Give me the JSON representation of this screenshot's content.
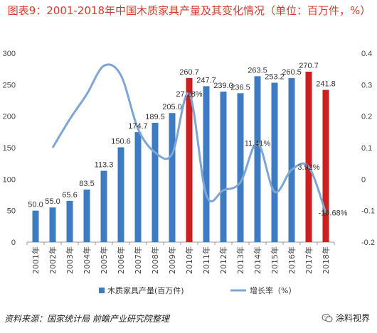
{
  "title": "图表9：2001-2018年中国木质家具产量及其变化情况（单位：百万件，%）",
  "source": "资料来源：国家统计局 前瞻产业研究院整理",
  "brand": "涂料视界",
  "chart_data": {
    "type": "bar",
    "categories": [
      "2001年",
      "2002年",
      "2003年",
      "2004年",
      "2005年",
      "2006年",
      "2007年",
      "2008年",
      "2009年",
      "2010年",
      "2011年",
      "2012年",
      "2013年",
      "2014年",
      "2015年",
      "2016年",
      "2017年",
      "2018年"
    ],
    "series": [
      {
        "name": "木质家具产量(百万件)",
        "type": "bar",
        "axis": "left",
        "values": [
          50.0,
          55.0,
          65.6,
          83.5,
          113.3,
          150.6,
          174.7,
          189.5,
          205.0,
          260.7,
          247.7,
          239.0,
          236.5,
          263.5,
          253.2,
          260.5,
          270.7,
          241.8
        ],
        "labels": [
          "50.0",
          "55.0",
          "65.6",
          "83.5",
          "113.3",
          "150.6",
          "174.7",
          "189.5",
          "205.0",
          "260.7",
          "247.7",
          "239.0",
          "236.5",
          "263.5",
          "253.2",
          "260.5",
          "270.7",
          "241.8"
        ],
        "color": "#3d7cc0",
        "highlight": [
          "2010年",
          "2017年",
          "2018年"
        ],
        "highlight_color": "#cc1f1f"
      },
      {
        "name": "增长率（%）",
        "type": "line",
        "axis": "right",
        "values": [
          null,
          0.1,
          0.19,
          0.27,
          0.36,
          0.33,
          0.16,
          0.085,
          0.08,
          0.2718,
          -0.05,
          -0.035,
          -0.01,
          0.1141,
          -0.04,
          0.03,
          0.0392,
          -0.1068
        ],
        "labels": {
          "2010年": "27.18%",
          "2014年": "11.41%",
          "2017年": "3.92%",
          "2018年": "-10.68%"
        },
        "color": "#7ea6d4"
      }
    ],
    "y_left": {
      "min": 0,
      "max": 300,
      "ticks": [
        "0",
        "50",
        "100",
        "150",
        "200",
        "250",
        "300"
      ]
    },
    "y_right": {
      "min": -0.2,
      "max": 0.4,
      "ticks": [
        "-0.2",
        "-0.1",
        "0",
        "0.1",
        "0.2",
        "0.3",
        "0.4"
      ]
    },
    "grid": false,
    "legend": "bottom-left"
  }
}
